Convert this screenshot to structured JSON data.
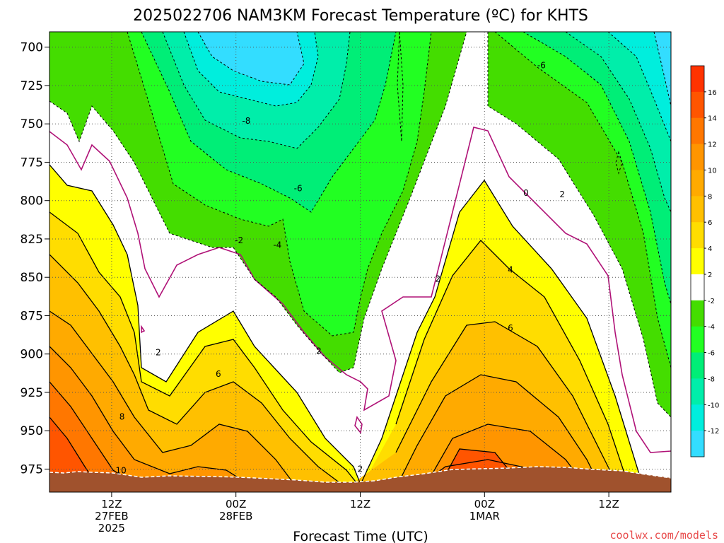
{
  "chart_data": {
    "type": "contour",
    "title": "2025022706 NAM3KM Forecast Temperature (ºC) for KHTS",
    "xlabel": "Forecast Time (UTC)",
    "credit": "coolwx.com/models",
    "y_axis": {
      "ticks": [
        "700",
        "725",
        "750",
        "775",
        "800",
        "825",
        "850",
        "875",
        "900",
        "925",
        "950",
        "975"
      ],
      "range": [
        690,
        990
      ]
    },
    "x_axis": {
      "range_hours": [
        0,
        60
      ],
      "ticks": [
        {
          "h": 6,
          "lines": [
            "12Z",
            "27FEB",
            "2025"
          ]
        },
        {
          "h": 18,
          "lines": [
            "00Z",
            "28FEB"
          ]
        },
        {
          "h": 30,
          "lines": [
            "12Z"
          ]
        },
        {
          "h": 42,
          "lines": [
            "00Z",
            "1MAR"
          ]
        },
        {
          "h": 54,
          "lines": [
            "12Z"
          ]
        }
      ]
    },
    "colorbar": {
      "labels": [
        "16",
        "14",
        "12",
        "10",
        "8",
        "6",
        "4",
        "2",
        "-2",
        "-4",
        "-6",
        "-8",
        "-10",
        "-12"
      ],
      "bins": [
        {
          "range": [
            16,
            18
          ],
          "color": "#ff3300"
        },
        {
          "range": [
            14,
            16
          ],
          "color": "#ff5500"
        },
        {
          "range": [
            12,
            14
          ],
          "color": "#ff7700"
        },
        {
          "range": [
            10,
            12
          ],
          "color": "#ff9500"
        },
        {
          "range": [
            8,
            10
          ],
          "color": "#ffaa00"
        },
        {
          "range": [
            6,
            8
          ],
          "color": "#ffc000"
        },
        {
          "range": [
            4,
            6
          ],
          "color": "#ffdd00"
        },
        {
          "range": [
            2,
            4
          ],
          "color": "#ffff00"
        },
        {
          "range": [
            -2,
            2
          ],
          "color": "#ffffff"
        },
        {
          "range": [
            -4,
            -2
          ],
          "color": "#44dd00"
        },
        {
          "range": [
            -6,
            -4
          ],
          "color": "#22ff22"
        },
        {
          "range": [
            -8,
            -6
          ],
          "color": "#00ee77"
        },
        {
          "range": [
            -10,
            -8
          ],
          "color": "#00eeaa"
        },
        {
          "range": [
            -12,
            -10
          ],
          "color": "#00eedd"
        },
        {
          "range": [
            -14,
            -12
          ],
          "color": "#33ddff"
        }
      ]
    },
    "contour_labels": [
      {
        "text": "-8",
        "h": 19.0,
        "p": 748
      },
      {
        "text": "-6",
        "h": 47.5,
        "p": 712
      },
      {
        "text": "-6",
        "h": 24.0,
        "p": 792
      },
      {
        "text": "-4",
        "h": 22.0,
        "p": 829
      },
      {
        "text": "-2",
        "h": 18.3,
        "p": 826
      },
      {
        "text": "0",
        "h": 46.0,
        "p": 795
      },
      {
        "text": "2",
        "h": 49.5,
        "p": 796
      },
      {
        "text": "2",
        "h": 37.5,
        "p": 851
      },
      {
        "text": "2",
        "h": 10.5,
        "p": 899
      },
      {
        "text": "2",
        "h": 26.0,
        "p": 898
      },
      {
        "text": "2",
        "h": 30.0,
        "p": 975
      },
      {
        "text": "4",
        "h": 44.5,
        "p": 845
      },
      {
        "text": "6",
        "h": 16.3,
        "p": 913
      },
      {
        "text": "6",
        "h": 44.5,
        "p": 883
      },
      {
        "text": "8",
        "h": 7.0,
        "p": 941
      },
      {
        "text": "10",
        "h": 6.9,
        "p": 976
      }
    ],
    "legend": "right-vertical-colorbar",
    "grid": true
  }
}
